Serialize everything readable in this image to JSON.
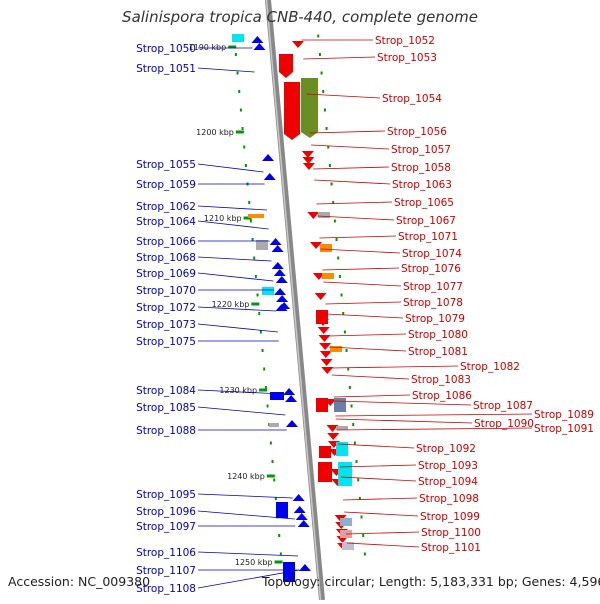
{
  "title": "Salinispora tropica CNB-440, complete genome",
  "footer": {
    "accession": "Accession: NC_009380",
    "summary": "Topology: circular; Length: 5,183,331 bp; Genes: 4,596"
  },
  "colors": {
    "forward": "#0000ee",
    "reverse": "#ee0000",
    "backbone": "#999999",
    "tick": "#009900",
    "orange": "#ff8c00",
    "cyan": "#00e5ee",
    "olive": "#6b8e23",
    "gray": "#aaaaaa"
  },
  "kbp_labels": [
    "1190 kbp",
    "1200 kbp",
    "1210 kbp",
    "1220 kbp",
    "1230 kbp",
    "1240 kbp",
    "1250 kbp"
  ],
  "left_labels": [
    "Strop_1050",
    "Strop_1051",
    "Strop_1055",
    "Strop_1059",
    "Strop_1062",
    "Strop_1064",
    "Strop_1066",
    "Strop_1068",
    "Strop_1069",
    "Strop_1070",
    "Strop_1072",
    "Strop_1073",
    "Strop_1075",
    "Strop_1084",
    "Strop_1085",
    "Strop_1088",
    "Strop_1095",
    "Strop_1096",
    "Strop_1097",
    "Strop_1106",
    "Strop_1107",
    "Strop_1108"
  ],
  "right_labels": [
    "Strop_1052",
    "Strop_1053",
    "Strop_1054",
    "Strop_1056",
    "Strop_1057",
    "Strop_1058",
    "Strop_1063",
    "Strop_1065",
    "Strop_1067",
    "Strop_1071",
    "Strop_1074",
    "Strop_1076",
    "Strop_1077",
    "Strop_1078",
    "Strop_1079",
    "Strop_1080",
    "Strop_1081",
    "Strop_1082",
    "Strop_1083",
    "Strop_1086",
    "Strop_1087",
    "Strop_1089",
    "Strop_1090",
    "Strop_1091",
    "Strop_1092",
    "Strop_1093",
    "Strop_1094",
    "Strop_1098",
    "Strop_1099",
    "Strop_1100",
    "Strop_1101"
  ]
}
